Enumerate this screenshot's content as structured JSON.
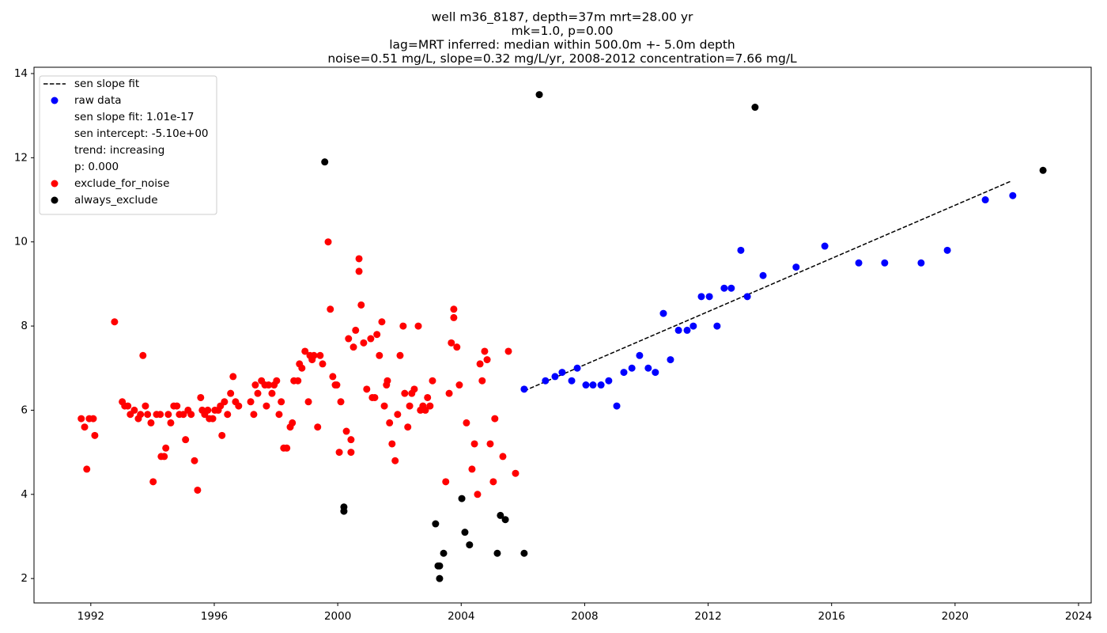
{
  "chart_data": {
    "type": "scatter",
    "title": [
      "well m36_8187, depth=37m mrt=28.00 yr",
      "mk=1.0, p=0.00",
      "lag=MRT inferred: median within 500.0m +- 5.0m depth",
      "noise=0.51 mg/L, slope=0.32 mg/L/yr, 2008-2012 concentration=7.66 mg/L"
    ],
    "xlim": [
      1990.16,
      2024.41
    ],
    "ylim": [
      1.42,
      14.15
    ],
    "xticks": [
      1992,
      1996,
      2000,
      2004,
      2008,
      2012,
      2016,
      2020,
      2024
    ],
    "yticks": [
      2,
      4,
      6,
      8,
      10,
      12,
      14
    ],
    "grid": false,
    "legend": {
      "loc": "upper left",
      "notes": [
        "sen slope fit: 1.01e-17",
        "sen intercept: -5.10e+00",
        "trend: increasing",
        "p: 0.000"
      ]
    },
    "series": [
      {
        "name": "sen slope fit",
        "type": "line",
        "dash": "dashed",
        "color": "#000000",
        "x": [
          2006.04,
          2021.8
        ],
        "values": [
          6.46,
          11.44
        ]
      },
      {
        "name": "raw data",
        "type": "scatter",
        "color": "#0000ff",
        "x": [
          2006.04,
          2006.73,
          2007.04,
          2007.27,
          2007.58,
          2007.76,
          2008.04,
          2008.27,
          2008.53,
          2008.78,
          2009.04,
          2009.27,
          2009.53,
          2009.78,
          2010.06,
          2010.29,
          2010.55,
          2010.78,
          2011.04,
          2011.32,
          2011.52,
          2011.78,
          2012.04,
          2012.29,
          2012.52,
          2012.75,
          2013.06,
          2013.27,
          2013.78,
          2014.85,
          2015.78,
          2016.88,
          2017.72,
          2018.9,
          2019.75,
          2020.98,
          2021.87
        ],
        "values": [
          6.5,
          6.7,
          6.8,
          6.9,
          6.7,
          7.0,
          6.6,
          6.6,
          6.6,
          6.7,
          6.1,
          6.9,
          7.0,
          7.3,
          7.0,
          6.9,
          8.3,
          7.2,
          7.9,
          7.9,
          8.0,
          8.7,
          8.7,
          8.0,
          8.9,
          8.9,
          9.8,
          8.7,
          9.2,
          9.4,
          9.9,
          9.5,
          9.5,
          9.5,
          9.8,
          11.0,
          11.1
        ]
      },
      {
        "name": "exclude_for_noise",
        "type": "scatter",
        "color": "#ff0000",
        "x": [
          1991.69,
          1991.8,
          1991.87,
          1991.95,
          1992.08,
          1992.13,
          1992.77,
          1993.02,
          1993.1,
          1993.2,
          1993.28,
          1993.41,
          1993.54,
          1993.61,
          1993.69,
          1993.77,
          1993.84,
          1993.95,
          1994.02,
          1994.13,
          1994.25,
          1994.28,
          1994.38,
          1994.43,
          1994.51,
          1994.59,
          1994.69,
          1994.79,
          1994.87,
          1995.0,
          1995.07,
          1995.15,
          1995.25,
          1995.36,
          1995.46,
          1995.56,
          1995.61,
          1995.69,
          1995.79,
          1995.84,
          1995.95,
          1996.02,
          1996.13,
          1996.2,
          1996.25,
          1996.33,
          1996.43,
          1996.53,
          1996.61,
          1996.69,
          1996.79,
          1997.18,
          1997.28,
          1997.33,
          1997.41,
          1997.53,
          1997.64,
          1997.69,
          1997.76,
          1997.87,
          1997.94,
          1998.02,
          1998.1,
          1998.17,
          1998.25,
          1998.35,
          1998.46,
          1998.53,
          1998.58,
          1998.71,
          1998.76,
          1998.84,
          1998.94,
          1999.05,
          1999.1,
          1999.17,
          1999.23,
          1999.35,
          1999.43,
          1999.51,
          1999.69,
          1999.76,
          1999.84,
          1999.92,
          1999.97,
          2000.05,
          2000.1,
          2000.28,
          2000.35,
          2000.43,
          2000.43,
          2000.51,
          2000.58,
          2000.69,
          2000.69,
          2000.76,
          2000.84,
          2000.94,
          2001.07,
          2001.12,
          2001.2,
          2001.27,
          2001.35,
          2001.43,
          2001.51,
          2001.58,
          2001.61,
          2001.68,
          2001.76,
          2001.86,
          2001.94,
          2002.02,
          2002.12,
          2002.17,
          2002.27,
          2002.33,
          2002.4,
          2002.48,
          2002.61,
          2002.68,
          2002.76,
          2002.84,
          2002.91,
          2002.99,
          2003.07,
          2003.5,
          2003.61,
          2003.68,
          2003.76,
          2003.76,
          2003.86,
          2003.94,
          2004.17,
          2004.35,
          2004.43,
          2004.53,
          2004.61,
          2004.68,
          2004.76,
          2004.84,
          2004.94,
          2005.04,
          2005.09,
          2005.35,
          2005.53,
          2005.76
        ],
        "values": [
          5.8,
          5.6,
          4.6,
          5.8,
          5.8,
          5.4,
          8.1,
          6.2,
          6.1,
          6.1,
          5.9,
          6.0,
          5.8,
          5.9,
          7.3,
          6.1,
          5.9,
          5.7,
          4.3,
          5.9,
          5.9,
          4.9,
          4.9,
          5.1,
          5.9,
          5.7,
          6.1,
          6.1,
          5.9,
          5.9,
          5.3,
          6.0,
          5.9,
          4.8,
          4.1,
          6.3,
          6.0,
          5.9,
          6.0,
          5.8,
          5.8,
          6.0,
          6.0,
          6.1,
          5.4,
          6.2,
          5.9,
          6.4,
          6.8,
          6.2,
          6.1,
          6.2,
          5.9,
          6.6,
          6.4,
          6.7,
          6.6,
          6.1,
          6.6,
          6.4,
          6.6,
          6.7,
          5.9,
          6.2,
          5.1,
          5.1,
          5.6,
          5.7,
          6.7,
          6.7,
          7.1,
          7.0,
          7.4,
          6.2,
          7.3,
          7.2,
          7.3,
          5.6,
          7.3,
          7.1,
          10.0,
          8.4,
          6.8,
          6.6,
          6.6,
          5.0,
          6.2,
          5.5,
          7.7,
          5.3,
          5.0,
          7.5,
          7.9,
          9.6,
          9.3,
          8.5,
          7.6,
          6.5,
          7.7,
          6.3,
          6.3,
          7.8,
          7.3,
          8.1,
          6.1,
          6.6,
          6.7,
          5.7,
          5.2,
          4.8,
          5.9,
          7.3,
          8.0,
          6.4,
          5.6,
          6.1,
          6.4,
          6.5,
          8.0,
          6.0,
          6.1,
          6.0,
          6.3,
          6.1,
          6.7,
          4.3,
          6.4,
          7.6,
          8.4,
          8.2,
          7.5,
          6.6,
          5.7,
          4.6,
          5.2,
          4.0,
          7.1,
          6.7,
          7.4,
          7.2,
          5.2,
          4.3,
          5.8,
          4.9,
          7.4,
          4.5
        ]
      },
      {
        "name": "always_exclude",
        "type": "scatter",
        "color": "#000000",
        "x": [
          1999.58,
          2006.53,
          2013.52,
          2022.85,
          2000.2,
          2000.2,
          2003.17,
          2003.25,
          2003.3,
          2003.3,
          2003.43,
          2004.02,
          2004.12,
          2004.27,
          2005.17,
          2005.27,
          2005.43,
          2006.04
        ],
        "values": [
          11.9,
          13.5,
          13.2,
          11.7,
          3.7,
          3.6,
          3.3,
          2.3,
          2.3,
          2.0,
          2.6,
          3.9,
          3.1,
          2.8,
          2.6,
          3.5,
          3.4,
          2.6
        ]
      }
    ]
  }
}
